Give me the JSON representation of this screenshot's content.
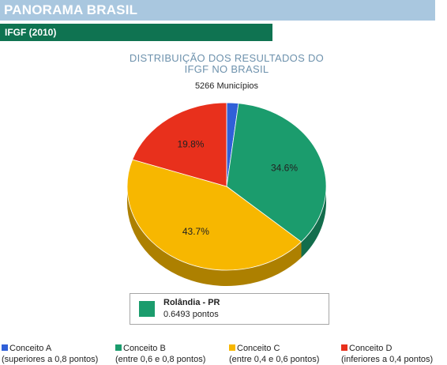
{
  "header": {
    "title": "PANORAMA BRASIL"
  },
  "subheader": {
    "title": "IFGF (2010)"
  },
  "chart_data": {
    "type": "pie",
    "title": "DISTRIBUIÇÃO DOS RESULTADOS DO IFGF NO BRASIL",
    "title_lines": [
      "DISTRIBUIÇÃO DOS RESULTADOS DO",
      "IFGF NO BRASIL"
    ],
    "subtitle": "5266 Municípios",
    "slices": [
      {
        "name": "Conceito A",
        "value": 1.9,
        "label": "",
        "color": "#3060d8"
      },
      {
        "name": "Conceito B",
        "value": 34.6,
        "label": "34.6%",
        "color": "#1b9c6d"
      },
      {
        "name": "Conceito C",
        "value": 43.7,
        "label": "43.7%",
        "color": "#f7b700"
      },
      {
        "name": "Conceito D",
        "value": 19.8,
        "label": "19.8%",
        "color": "#e8301c"
      }
    ],
    "legend": [
      {
        "name": "Conceito A",
        "range": "(superiores a 0,8 pontos)",
        "color": "#3060d8"
      },
      {
        "name": "Conceito B",
        "range": "(entre 0,6 e 0,8 pontos)",
        "color": "#1b9c6d"
      },
      {
        "name": "Conceito C",
        "range": "(entre 0,4 e 0,6 pontos)",
        "color": "#f7b700"
      },
      {
        "name": "Conceito D",
        "range": "(inferiores a 0,4 pontos)",
        "color": "#e8301c"
      }
    ],
    "legend_position": "bottom"
  },
  "city": {
    "name": "Rolândia - PR",
    "score": "0.6493 pontos",
    "color": "#1b9c6d"
  }
}
